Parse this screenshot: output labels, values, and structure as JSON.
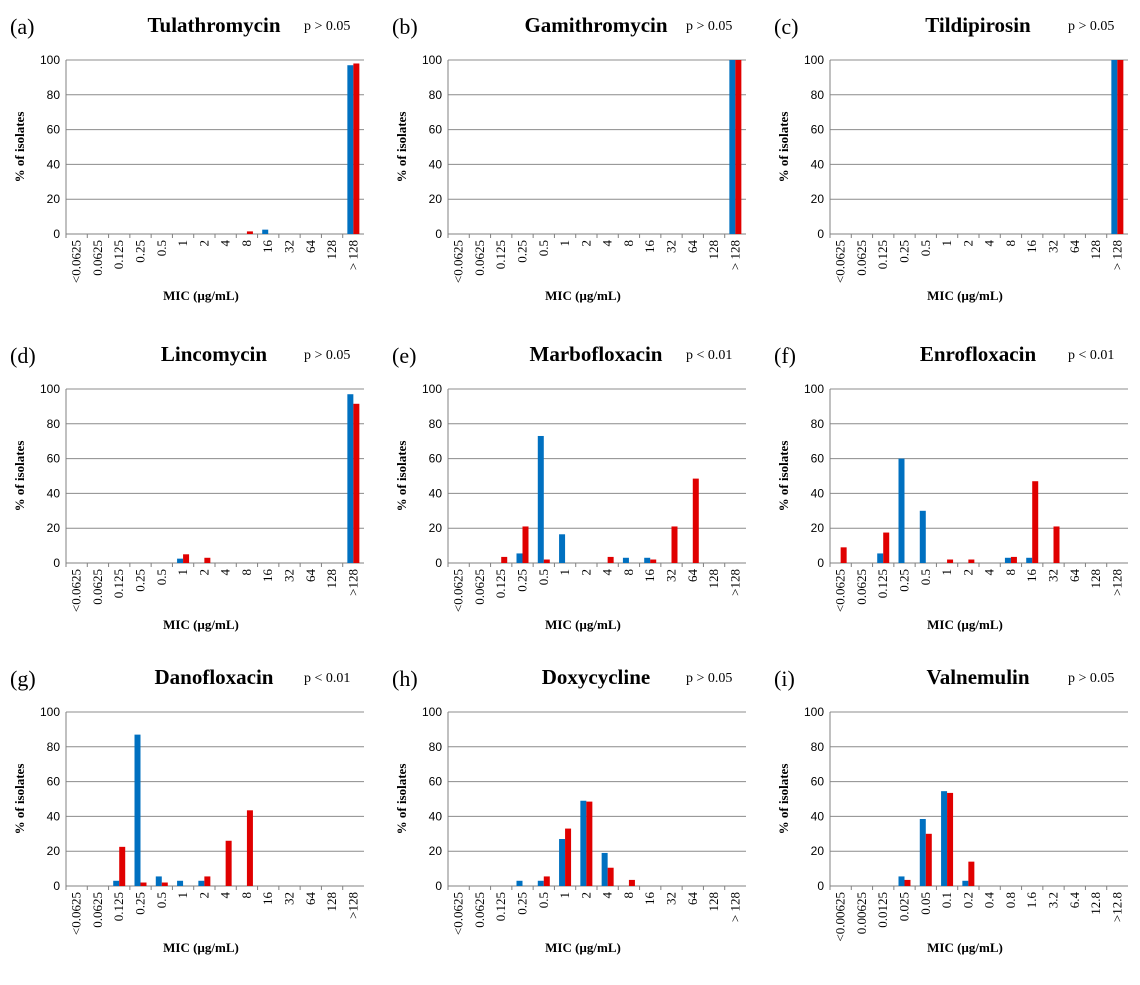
{
  "series_colors": [
    "#0070C0",
    "#E00000"
  ],
  "chart_data": [
    {
      "type": "bar",
      "letter": "(a)",
      "title": "Tulathromycin",
      "p_value": "p > 0.05",
      "categories": [
        "<0.0625",
        "0.0625",
        "0.125",
        "0.25",
        "0.5",
        "1",
        "2",
        "4",
        "8",
        "16",
        "32",
        "64",
        "128",
        "> 128"
      ],
      "series": [
        {
          "values": [
            0,
            0,
            0,
            0,
            0,
            0,
            0,
            0,
            0,
            2.5,
            0,
            0,
            0,
            97
          ]
        },
        {
          "values": [
            0,
            0,
            0,
            0,
            0,
            0,
            0,
            0,
            1.5,
            0,
            0,
            0,
            0,
            98
          ]
        }
      ],
      "xlabel": "MIC (µg/mL)",
      "ylabel": "% of isolates",
      "ylim": [
        0,
        100
      ],
      "yticks": [
        "0",
        "20",
        "40",
        "60",
        "80",
        "100"
      ],
      "grid": true
    },
    {
      "type": "bar",
      "letter": "(b)",
      "title": "Gamithromycin",
      "p_value": "p > 0.05",
      "categories": [
        "<0.0625",
        "0.0625",
        "0.125",
        "0.25",
        "0.5",
        "1",
        "2",
        "4",
        "8",
        "16",
        "32",
        "64",
        "128",
        "> 128"
      ],
      "series": [
        {
          "values": [
            0,
            0,
            0,
            0,
            0,
            0,
            0,
            0,
            0,
            0,
            0,
            0,
            0,
            100
          ]
        },
        {
          "values": [
            0,
            0,
            0,
            0,
            0,
            0,
            0,
            0,
            0,
            0,
            0,
            0,
            0,
            100
          ]
        }
      ],
      "xlabel": "MIC (µg/mL)",
      "ylabel": "% of isolates",
      "ylim": [
        0,
        100
      ],
      "yticks": [
        "0",
        "20",
        "40",
        "60",
        "80",
        "100"
      ],
      "grid": true
    },
    {
      "type": "bar",
      "letter": "(c)",
      "title": "Tildipirosin",
      "p_value": "p > 0.05",
      "categories": [
        "<0.0625",
        "0.0625",
        "0.125",
        "0.25",
        "0.5",
        "1",
        "2",
        "4",
        "8",
        "16",
        "32",
        "64",
        "128",
        "> 128"
      ],
      "series": [
        {
          "values": [
            0,
            0,
            0,
            0,
            0,
            0,
            0,
            0,
            0,
            0,
            0,
            0,
            0,
            100
          ]
        },
        {
          "values": [
            0,
            0,
            0,
            0,
            0,
            0,
            0,
            0,
            0,
            0,
            0,
            0,
            0,
            100
          ]
        }
      ],
      "xlabel": "MIC (µg/mL)",
      "ylabel": "% of isolates",
      "ylim": [
        0,
        100
      ],
      "yticks": [
        "0",
        "20",
        "40",
        "60",
        "80",
        "100"
      ],
      "grid": true
    },
    {
      "type": "bar",
      "letter": "(d)",
      "title": "Lincomycin",
      "p_value": "p > 0.05",
      "categories": [
        "<0.0625",
        "0.0625",
        "0.125",
        "0.25",
        "0.5",
        "1",
        "2",
        "4",
        "8",
        "16",
        "32",
        "64",
        "128",
        ">128"
      ],
      "series": [
        {
          "values": [
            0,
            0,
            0,
            0,
            0,
            2.5,
            0,
            0,
            0,
            0,
            0,
            0,
            0,
            97
          ]
        },
        {
          "values": [
            0,
            0,
            0,
            0,
            0,
            5,
            3,
            0,
            0,
            0,
            0,
            0,
            0,
            91.5
          ]
        }
      ],
      "xlabel": "MIC (µg/mL)",
      "ylabel": "% of isolates",
      "ylim": [
        0,
        100
      ],
      "yticks": [
        "0",
        "20",
        "40",
        "60",
        "80",
        "100"
      ],
      "grid": true
    },
    {
      "type": "bar",
      "letter": "(e)",
      "title": "Marbofloxacin",
      "p_value": "p < 0.01",
      "categories": [
        "<0.0625",
        "0.0625",
        "0.125",
        "0.25",
        "0.5",
        "1",
        "2",
        "4",
        "8",
        "16",
        "32",
        "64",
        "128",
        ">128"
      ],
      "series": [
        {
          "values": [
            0,
            0,
            0,
            5.5,
            73,
            16.5,
            0,
            0,
            3,
            3,
            0,
            0,
            0,
            0
          ]
        },
        {
          "values": [
            0,
            0,
            3.5,
            21,
            2,
            0,
            0,
            3.5,
            0,
            2,
            21,
            48.5,
            0,
            0
          ]
        }
      ],
      "xlabel": "MIC (µg/mL)",
      "ylabel": "% of isolates",
      "ylim": [
        0,
        100
      ],
      "yticks": [
        "0",
        "20",
        "40",
        "60",
        "80",
        "100"
      ],
      "grid": true
    },
    {
      "type": "bar",
      "letter": "(f)",
      "title": "Enrofloxacin",
      "p_value": "p < 0.01",
      "categories": [
        "<0.0625",
        "0.0625",
        "0.125",
        "0.25",
        "0.5",
        "1",
        "2",
        "4",
        "8",
        "16",
        "32",
        "64",
        "128",
        ">128"
      ],
      "series": [
        {
          "values": [
            0,
            0,
            5.5,
            60,
            30,
            0,
            0,
            0,
            3,
            3,
            0,
            0,
            0,
            0
          ]
        },
        {
          "values": [
            9,
            0,
            17.5,
            0,
            0,
            2,
            2,
            0,
            3.5,
            47,
            21,
            0,
            0,
            0
          ]
        }
      ],
      "xlabel": "MIC (µg/mL)",
      "ylabel": "% of isolates",
      "ylim": [
        0,
        100
      ],
      "yticks": [
        "0",
        "20",
        "40",
        "60",
        "80",
        "100"
      ],
      "grid": true
    },
    {
      "type": "bar",
      "letter": "(g)",
      "title": "Danofloxacin",
      "p_value": "p < 0.01",
      "categories": [
        "<0.0625",
        "0.0625",
        "0.125",
        "0.25",
        "0.5",
        "1",
        "2",
        "4",
        "8",
        "16",
        "32",
        "64",
        "128",
        ">128"
      ],
      "series": [
        {
          "values": [
            0,
            0,
            3,
            87,
            5.5,
            3,
            3,
            0,
            0,
            0,
            0,
            0,
            0,
            0
          ]
        },
        {
          "values": [
            0,
            0,
            22.5,
            2,
            2,
            0,
            5.5,
            26,
            43.5,
            0,
            0,
            0,
            0,
            0
          ]
        }
      ],
      "xlabel": "MIC (µg/mL)",
      "ylabel": "% of isolates",
      "ylim": [
        0,
        100
      ],
      "yticks": [
        "0",
        "20",
        "40",
        "60",
        "80",
        "100"
      ],
      "grid": true
    },
    {
      "type": "bar",
      "letter": "(h)",
      "title": "Doxycycline",
      "p_value": "p > 0.05",
      "categories": [
        "<0.0625",
        "0.0625",
        "0.125",
        "0.25",
        "0.5",
        "1",
        "2",
        "4",
        "8",
        "16",
        "32",
        "64",
        "128",
        "> 128"
      ],
      "series": [
        {
          "values": [
            0,
            0,
            0,
            3,
            3,
            27,
            49,
            19,
            0,
            0,
            0,
            0,
            0,
            0
          ]
        },
        {
          "values": [
            0,
            0,
            0,
            0,
            5.5,
            33,
            48.5,
            10.5,
            3.5,
            0,
            0,
            0,
            0,
            0
          ]
        }
      ],
      "xlabel": "MIC (µg/mL)",
      "ylabel": "% of isolates",
      "ylim": [
        0,
        100
      ],
      "yticks": [
        "0",
        "20",
        "40",
        "60",
        "80",
        "100"
      ],
      "grid": true
    },
    {
      "type": "bar",
      "letter": "(i)",
      "title": "Valnemulin",
      "p_value": "p > 0.05",
      "categories": [
        "<0.00625",
        "0.00625",
        "0.0125",
        "0.025",
        "0.05",
        "0.1",
        "0.2",
        "0.4",
        "0.8",
        "1.6",
        "3.2",
        "6.4",
        "12.8",
        ">12.8"
      ],
      "series": [
        {
          "values": [
            0,
            0,
            0,
            5.5,
            38.5,
            54.5,
            3,
            0,
            0,
            0,
            0,
            0,
            0,
            0
          ]
        },
        {
          "values": [
            0,
            0,
            0,
            3.5,
            30,
            53.5,
            14,
            0,
            0,
            0,
            0,
            0,
            0,
            0
          ]
        }
      ],
      "xlabel": "MIC (µg/mL)",
      "ylabel": "% of isolates",
      "ylim": [
        0,
        100
      ],
      "yticks": [
        "0",
        "20",
        "40",
        "60",
        "80",
        "100"
      ],
      "grid": true
    }
  ]
}
